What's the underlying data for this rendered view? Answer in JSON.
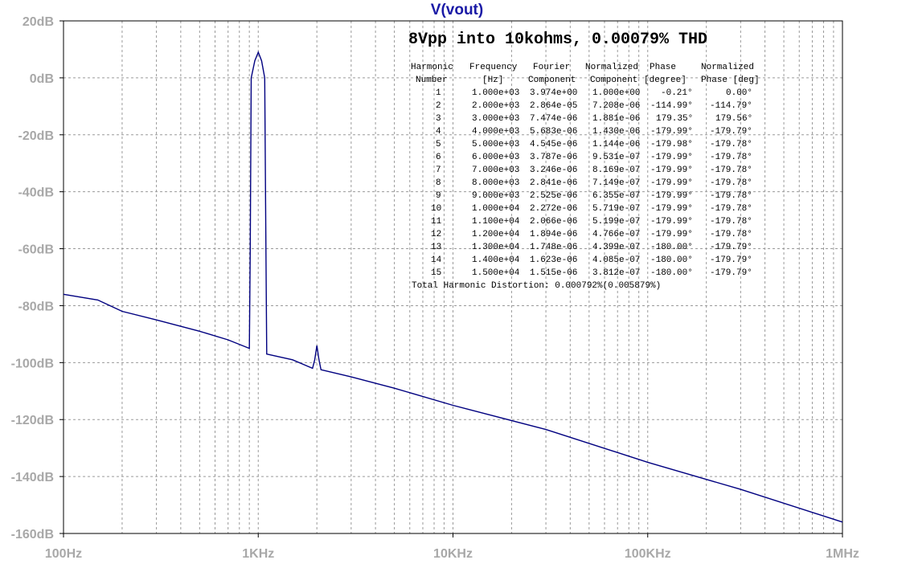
{
  "window_title": "V(vout)",
  "annotation_title": "8Vpp into 10kohms, 0.00079% THD",
  "fourier_table": {
    "headers_line1": [
      "Harmonic",
      "Frequency",
      "Fourier",
      "Normalized",
      "Phase",
      "Normalized"
    ],
    "headers_line2": [
      "Number",
      "[Hz]",
      "Component",
      "Component",
      "[degree]",
      "Phase [deg]"
    ],
    "rows": [
      [
        "1",
        "1.000e+03",
        "3.974e+00",
        "1.000e+00",
        "-0.21°",
        "0.00°"
      ],
      [
        "2",
        "2.000e+03",
        "2.864e-05",
        "7.208e-06",
        "-114.99°",
        "-114.79°"
      ],
      [
        "3",
        "3.000e+03",
        "7.474e-06",
        "1.881e-06",
        "179.35°",
        "179.56°"
      ],
      [
        "4",
        "4.000e+03",
        "5.683e-06",
        "1.430e-06",
        "-179.99°",
        "-179.79°"
      ],
      [
        "5",
        "5.000e+03",
        "4.545e-06",
        "1.144e-06",
        "-179.98°",
        "-179.78°"
      ],
      [
        "6",
        "6.000e+03",
        "3.787e-06",
        "9.531e-07",
        "-179.99°",
        "-179.78°"
      ],
      [
        "7",
        "7.000e+03",
        "3.246e-06",
        "8.169e-07",
        "-179.99°",
        "-179.78°"
      ],
      [
        "8",
        "8.000e+03",
        "2.841e-06",
        "7.149e-07",
        "-179.99°",
        "-179.78°"
      ],
      [
        "9",
        "9.000e+03",
        "2.525e-06",
        "6.355e-07",
        "-179.99°",
        "-179.78°"
      ],
      [
        "10",
        "1.000e+04",
        "2.272e-06",
        "5.719e-07",
        "-179.99°",
        "-179.78°"
      ],
      [
        "11",
        "1.100e+04",
        "2.066e-06",
        "5.199e-07",
        "-179.99°",
        "-179.78°"
      ],
      [
        "12",
        "1.200e+04",
        "1.894e-06",
        "4.766e-07",
        "-179.99°",
        "-179.78°"
      ],
      [
        "13",
        "1.300e+04",
        "1.748e-06",
        "4.399e-07",
        "-180.00°",
        "-179.79°"
      ],
      [
        "14",
        "1.400e+04",
        "1.623e-06",
        "4.085e-07",
        "-180.00°",
        "-179.79°"
      ],
      [
        "15",
        "1.500e+04",
        "1.515e-06",
        "3.812e-07",
        "-180.00°",
        "-179.79°"
      ]
    ],
    "thd_line": "Total Harmonic Distortion: 0.000792%(0.005879%)"
  },
  "chart_data": {
    "type": "line",
    "title": "V(vout)",
    "x_scale": "log",
    "xlim": [
      100,
      1000000
    ],
    "ylim": [
      -160,
      20
    ],
    "x_ticks": [
      100,
      1000,
      10000,
      100000,
      1000000
    ],
    "x_tick_labels": [
      "100Hz",
      "1KHz",
      "10KHz",
      "100KHz",
      "1MHz"
    ],
    "y_ticks": [
      20,
      0,
      -20,
      -40,
      -60,
      -80,
      -100,
      -120,
      -140,
      -160
    ],
    "y_tick_labels": [
      "20dB",
      "0dB",
      "-20dB",
      "-40dB",
      "-60dB",
      "-80dB",
      "-100dB",
      "-120dB",
      "-140dB",
      "-160dB"
    ],
    "grid": true,
    "series": [
      {
        "color": "#000080",
        "points": [
          [
            100,
            -76
          ],
          [
            150,
            -78
          ],
          [
            200,
            -82
          ],
          [
            300,
            -85
          ],
          [
            500,
            -89
          ],
          [
            700,
            -92
          ],
          [
            900,
            -95
          ],
          [
            910,
            -60
          ],
          [
            920,
            0
          ],
          [
            960,
            6
          ],
          [
            1000,
            9
          ],
          [
            1040,
            6
          ],
          [
            1080,
            0
          ],
          [
            1095,
            -60
          ],
          [
            1105,
            -97
          ],
          [
            1500,
            -99
          ],
          [
            1900,
            -102
          ],
          [
            1950,
            -99
          ],
          [
            2000,
            -94
          ],
          [
            2050,
            -99
          ],
          [
            2100,
            -102.5
          ],
          [
            3000,
            -105
          ],
          [
            5000,
            -109
          ],
          [
            10000,
            -115
          ],
          [
            30000,
            -123.5
          ],
          [
            100000,
            -135
          ],
          [
            300000,
            -144.5
          ],
          [
            1000000,
            -156
          ]
        ]
      }
    ]
  },
  "colors": {
    "grid": "#9a9a9a",
    "axis": "#000000",
    "trace": "#000080",
    "tick_text": "#a8a8a8",
    "title": "#1a1aa6"
  }
}
